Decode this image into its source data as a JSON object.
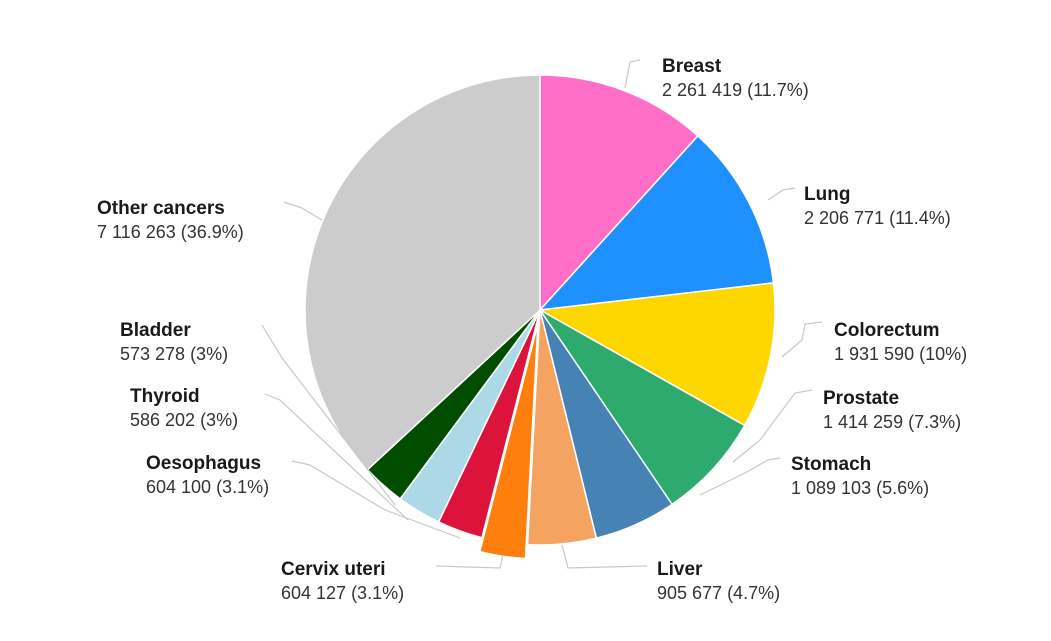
{
  "chart_data": {
    "type": "pie",
    "title": "",
    "slices": [
      {
        "label": "Breast",
        "value": 2261419,
        "value_text": "2 261 419 (11.7%)",
        "percent": 11.7,
        "color": "#ff6ec7"
      },
      {
        "label": "Lung",
        "value": 2206771,
        "value_text": "2 206 771 (11.4%)",
        "percent": 11.4,
        "color": "#1e90ff"
      },
      {
        "label": "Colorectum",
        "value": 1931590,
        "value_text": "1 931 590 (10%)",
        "percent": 10.0,
        "color": "#ffd700"
      },
      {
        "label": "Prostate",
        "value": 1414259,
        "value_text": "1 414 259 (7.3%)",
        "percent": 7.3,
        "color": "#2eaa6e"
      },
      {
        "label": "Stomach",
        "value": 1089103,
        "value_text": "1 089 103 (5.6%)",
        "percent": 5.6,
        "color": "#4682b4"
      },
      {
        "label": "Liver",
        "value": 905677,
        "value_text": "905 677 (4.7%)",
        "percent": 4.7,
        "color": "#f4a460"
      },
      {
        "label": "Cervix uteri",
        "value": 604127,
        "value_text": "604 127 (3.1%)",
        "percent": 3.1,
        "color": "#ff7f0e",
        "exploded": true
      },
      {
        "label": "Oesophagus",
        "value": 604100,
        "value_text": "604 100 (3.1%)",
        "percent": 3.1,
        "color": "#dc143c"
      },
      {
        "label": "Thyroid",
        "value": 586202,
        "value_text": "586 202 (3%)",
        "percent": 3.0,
        "color": "#add8e6"
      },
      {
        "label": "Bladder",
        "value": 573278,
        "value_text": "573 278 (3%)",
        "percent": 3.0,
        "color": "#004d00"
      },
      {
        "label": "Other cancers",
        "value": 7116263,
        "value_text": "7 116 263 (36.9%)",
        "percent": 36.9,
        "color": "#cccccc"
      }
    ]
  }
}
